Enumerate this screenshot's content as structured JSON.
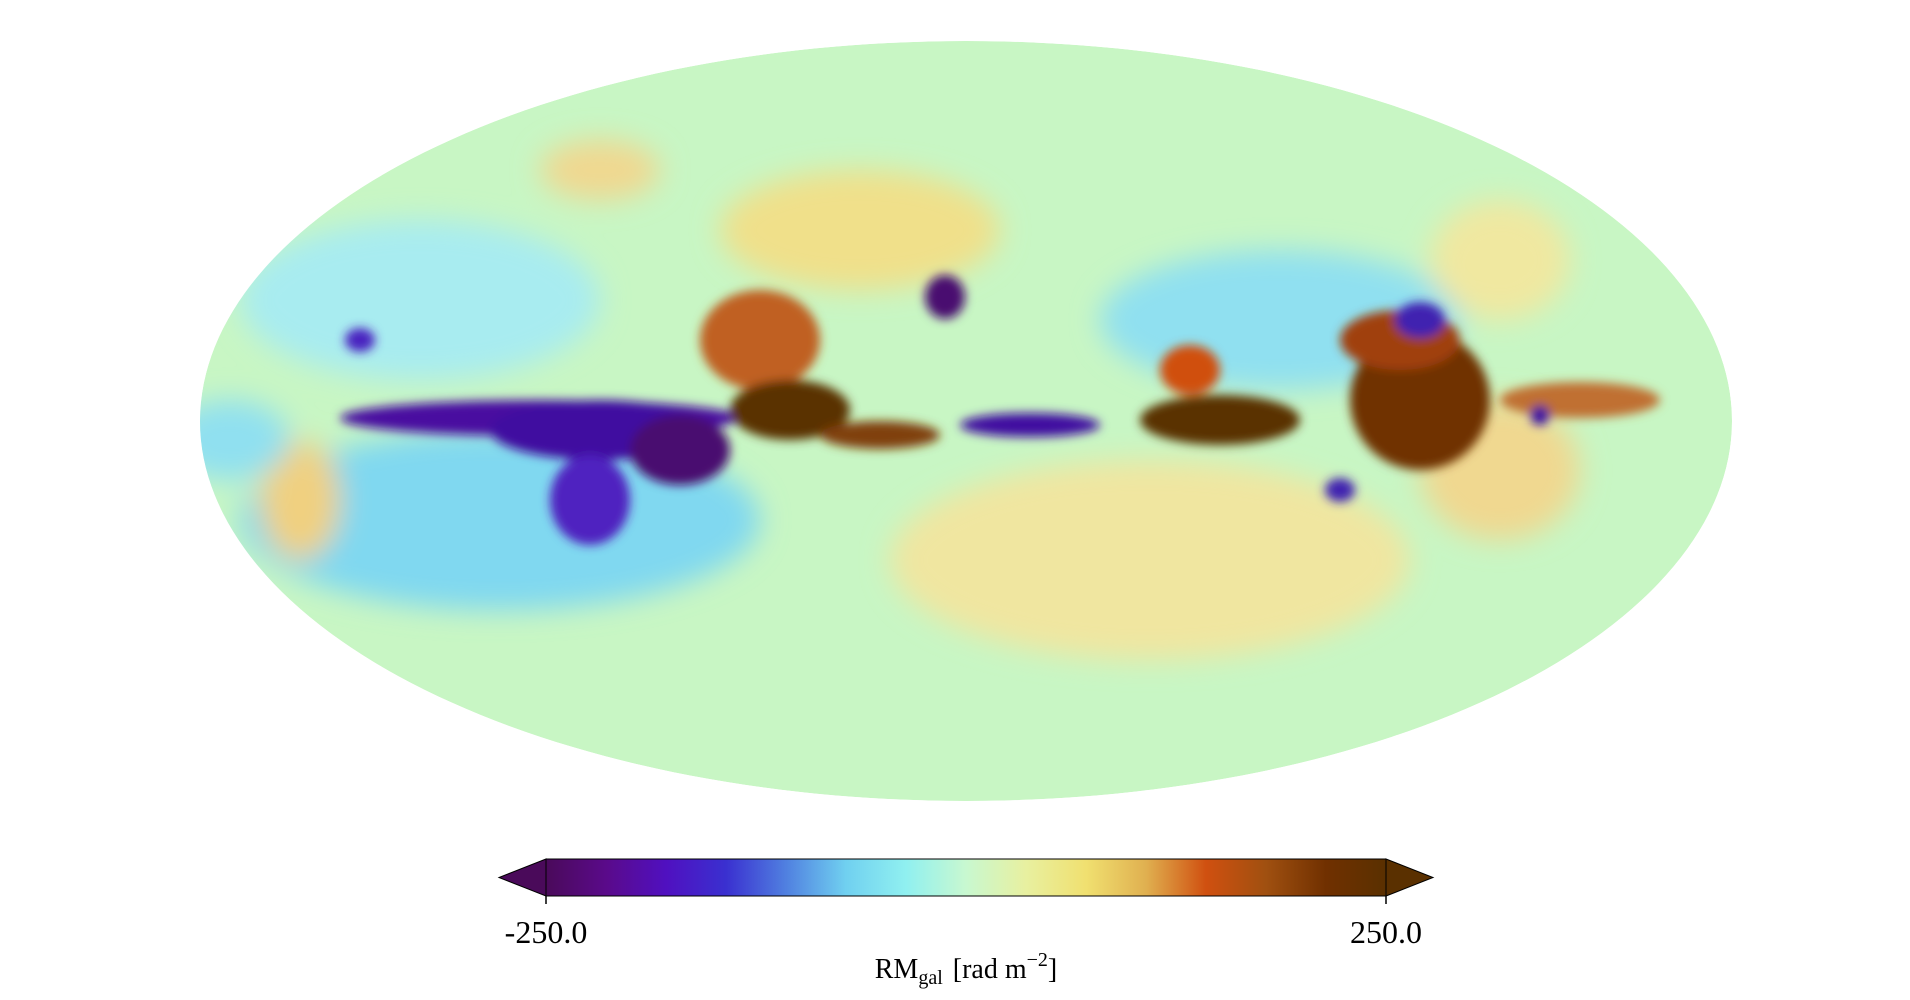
{
  "chart_data": {
    "type": "mollweide",
    "colorbar": {
      "clim": [
        -250,
        250
      ],
      "ticks": [
        {
          "value": -250,
          "label": "-250.0"
        },
        {
          "value": 250,
          "label": "250.0"
        }
      ],
      "label": {
        "main": "RM",
        "sub": "gal",
        "unit": "[rad m",
        "exp": "−2",
        "close": "]"
      },
      "extend": "both"
    },
    "colormap": [
      "#4a0a5a",
      "#5a0a8a",
      "#5010c0",
      "#3a30d0",
      "#5080e0",
      "#70d0f0",
      "#90f0f0",
      "#c8f8d0",
      "#e8f0a0",
      "#f0e070",
      "#e0b050",
      "#d05010",
      "#a05010",
      "#703000",
      "#5a3000"
    ]
  }
}
